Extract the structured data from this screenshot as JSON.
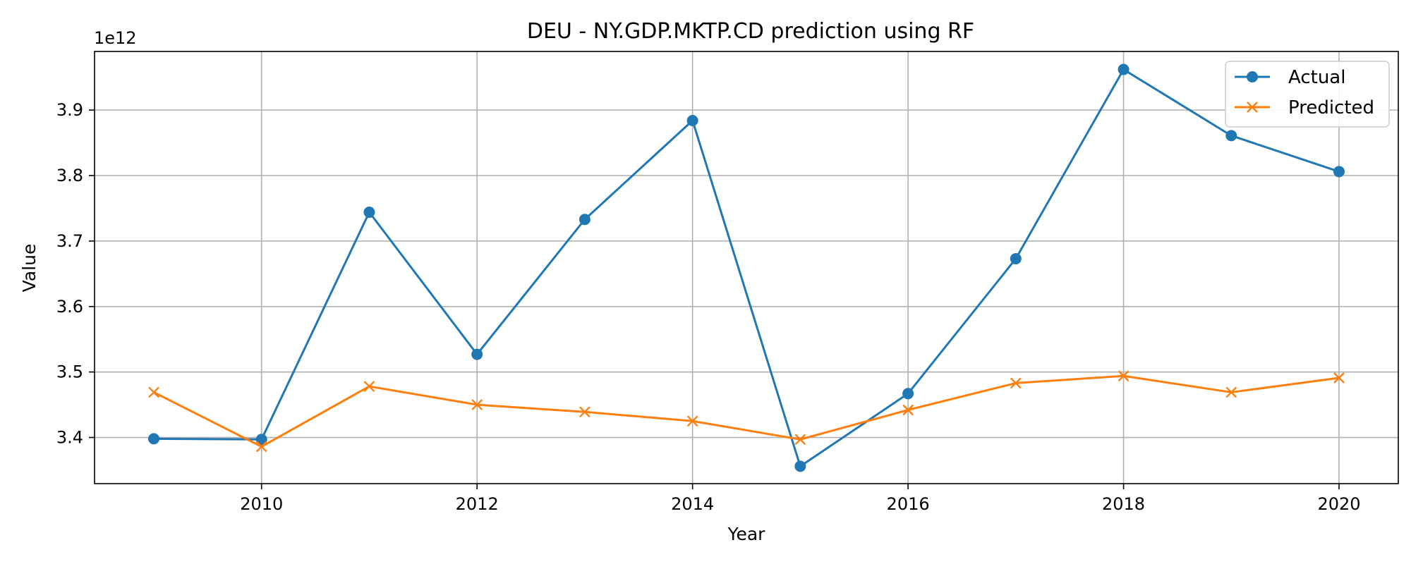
{
  "chart_data": {
    "type": "line",
    "title": "DEU - NY.GDP.MKTP.CD prediction using RF",
    "xlabel": "Year",
    "ylabel": "Value",
    "y_scale_label": "1e12",
    "x": [
      2009,
      2010,
      2011,
      2012,
      2013,
      2014,
      2015,
      2016,
      2017,
      2018,
      2019,
      2020
    ],
    "xlim": [
      2008.45,
      2020.55
    ],
    "ylim": [
      3.3295,
      3.9895
    ],
    "x_ticks": [
      2010,
      2012,
      2014,
      2016,
      2018,
      2020
    ],
    "y_ticks": [
      3.4,
      3.5,
      3.6,
      3.7,
      3.8,
      3.9
    ],
    "x_tick_labels": [
      "2010",
      "2012",
      "2014",
      "2016",
      "2018",
      "2020"
    ],
    "y_tick_labels": [
      "3.4",
      "3.5",
      "3.6",
      "3.7",
      "3.8",
      "3.9"
    ],
    "grid": true,
    "legend_position": "top-right",
    "series": [
      {
        "name": "Actual",
        "color": "#1f77b4",
        "marker": "circle",
        "values": [
          3.398,
          3.397,
          3.744,
          3.527,
          3.733,
          3.884,
          3.356,
          3.467,
          3.673,
          3.962,
          3.861,
          3.806
        ]
      },
      {
        "name": "Predicted",
        "color": "#ff7f0e",
        "marker": "x",
        "values": [
          3.469,
          3.386,
          3.478,
          3.45,
          3.439,
          3.425,
          3.397,
          3.442,
          3.483,
          3.494,
          3.469,
          3.491
        ]
      }
    ]
  }
}
